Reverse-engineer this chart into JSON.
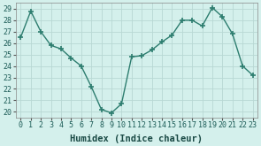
{
  "x": [
    0,
    1,
    2,
    3,
    4,
    5,
    6,
    7,
    8,
    9,
    10,
    11,
    12,
    13,
    14,
    15,
    16,
    17,
    18,
    19,
    20,
    21,
    22,
    23
  ],
  "y": [
    26.5,
    28.8,
    27.0,
    25.8,
    25.5,
    24.7,
    24.0,
    22.2,
    20.2,
    19.9,
    20.7,
    24.8,
    24.9,
    25.4,
    26.1,
    26.7,
    28.0,
    28.0,
    27.5,
    29.1,
    28.3,
    26.8,
    24.0,
    23.2
  ],
  "line_color": "#2d7d6f",
  "marker": "+",
  "markersize": 4,
  "markeredgewidth": 1.2,
  "linewidth": 1.0,
  "background_color": "#d4f0ec",
  "grid_color": "#b8d8d4",
  "xlabel": "Humidex (Indice chaleur)",
  "xlabel_fontsize": 7.5,
  "tick_fontsize": 6,
  "yticks": [
    20,
    21,
    22,
    23,
    24,
    25,
    26,
    27,
    28,
    29
  ],
  "xticks": [
    0,
    1,
    2,
    3,
    4,
    5,
    6,
    7,
    8,
    9,
    10,
    11,
    12,
    13,
    14,
    15,
    16,
    17,
    18,
    19,
    20,
    21,
    22,
    23
  ],
  "ylim": [
    19.5,
    29.5
  ],
  "xlim": [
    -0.5,
    23.5
  ]
}
